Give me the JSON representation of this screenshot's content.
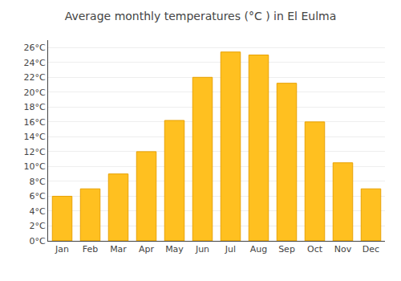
{
  "chart_data": {
    "type": "bar",
    "title": "Average monthly temperatures (°C ) in El Eulma",
    "categories": [
      "Jan",
      "Feb",
      "Mar",
      "Apr",
      "May",
      "Jun",
      "Jul",
      "Aug",
      "Sep",
      "Oct",
      "Nov",
      "Dec"
    ],
    "values": [
      6.0,
      7.0,
      9.0,
      12.0,
      16.2,
      22.0,
      25.4,
      25.0,
      21.2,
      16.0,
      10.5,
      7.0
    ],
    "color": "#FFC020",
    "ylim": [
      0,
      27
    ],
    "yticks": [
      {
        "value": 0,
        "label": "0°C"
      },
      {
        "value": 2,
        "label": "2°C"
      },
      {
        "value": 4,
        "label": "4°C"
      },
      {
        "value": 6,
        "label": "6°C"
      },
      {
        "value": 8,
        "label": "8°C"
      },
      {
        "value": 10,
        "label": "10°C"
      },
      {
        "value": 12,
        "label": "12°C"
      },
      {
        "value": 14,
        "label": "14°C"
      },
      {
        "value": 16,
        "label": "16°C"
      },
      {
        "value": 18,
        "label": "18°C"
      },
      {
        "value": 20,
        "label": "20°C"
      },
      {
        "value": 22,
        "label": "22°C"
      },
      {
        "value": 24,
        "label": "24°C"
      },
      {
        "value": 26,
        "label": "26°C"
      }
    ],
    "grid": true
  }
}
